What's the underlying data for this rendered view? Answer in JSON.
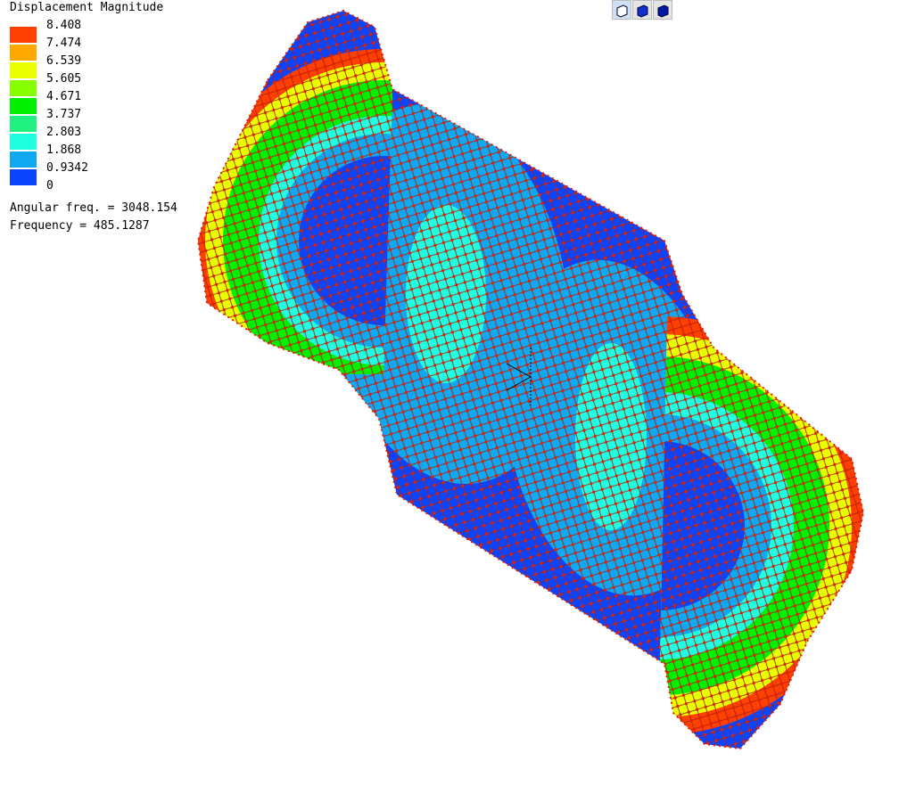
{
  "legend": {
    "title": "Displacement Magnitude",
    "labels": [
      "8.408",
      "7.474",
      "6.539",
      "5.605",
      "4.671",
      "3.737",
      "2.803",
      "1.868",
      "0.9342",
      "0"
    ],
    "swatches": [
      "#ff4000",
      "#ffa800",
      "#e8ff00",
      "#88ff00",
      "#00f000",
      "#20f080",
      "#20ffe0",
      "#10a8f0",
      "#0a44ff"
    ]
  },
  "info": [
    "Angular freq. = 3048.154",
    "Frequency = 485.1287"
  ]
}
